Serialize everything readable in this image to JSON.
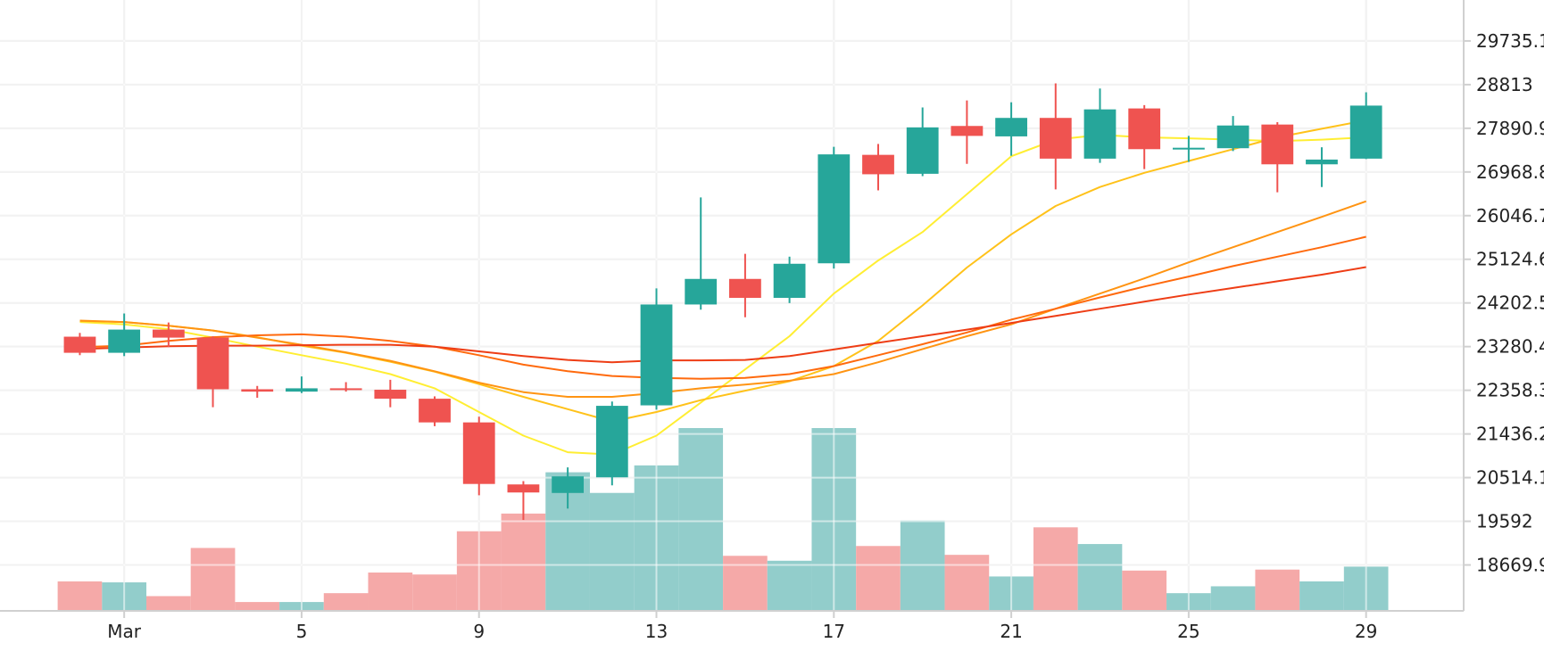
{
  "chart_data": {
    "type": "candlestick",
    "x_tick_labels": [
      "Mar",
      "5",
      "9",
      "13",
      "17",
      "21",
      "25",
      "29"
    ],
    "x_tick_days": [
      1,
      5,
      9,
      13,
      17,
      21,
      25,
      29
    ],
    "y_tick_labels": [
      "29735.1",
      "28813",
      "27890.9",
      "26968.8",
      "26046.7",
      "25124.6",
      "24202.5",
      "23280.4",
      "22358.3",
      "21436.2",
      "20514.1",
      "19592",
      "18669.9"
    ],
    "y_tick_values": [
      29735.1,
      28813,
      27890.9,
      26968.8,
      26046.7,
      25124.6,
      24202.5,
      23280.4,
      22358.3,
      21436.2,
      20514.1,
      19592,
      18669.9
    ],
    "ylim": [
      17700,
      30600
    ],
    "xlim": [
      -1.8,
      31.2
    ],
    "grid": true,
    "candles": [
      {
        "day": 0,
        "open": 23490,
        "high": 23570,
        "low": 23100,
        "close": 23150
      },
      {
        "day": 1,
        "open": 23150,
        "high": 23980,
        "low": 23080,
        "close": 23640
      },
      {
        "day": 2,
        "open": 23640,
        "high": 23790,
        "low": 23270,
        "close": 23470
      },
      {
        "day": 3,
        "open": 23470,
        "high": 23500,
        "low": 22000,
        "close": 22380
      },
      {
        "day": 4,
        "open": 22380,
        "high": 22450,
        "low": 22200,
        "close": 22330
      },
      {
        "day": 5,
        "open": 22330,
        "high": 22650,
        "low": 22300,
        "close": 22400
      },
      {
        "day": 6,
        "open": 22400,
        "high": 22530,
        "low": 22330,
        "close": 22370
      },
      {
        "day": 7,
        "open": 22370,
        "high": 22580,
        "low": 22000,
        "close": 22180
      },
      {
        "day": 8,
        "open": 22180,
        "high": 22230,
        "low": 21600,
        "close": 21680
      },
      {
        "day": 9,
        "open": 21680,
        "high": 21800,
        "low": 20140,
        "close": 20380
      },
      {
        "day": 10,
        "open": 20370,
        "high": 20440,
        "low": 19620,
        "close": 20200
      },
      {
        "day": 11,
        "open": 20190,
        "high": 20730,
        "low": 19860,
        "close": 20540
      },
      {
        "day": 12,
        "open": 20520,
        "high": 22120,
        "low": 20350,
        "close": 22030
      },
      {
        "day": 13,
        "open": 22040,
        "high": 24510,
        "low": 21950,
        "close": 24170
      },
      {
        "day": 14,
        "open": 24170,
        "high": 26430,
        "low": 24060,
        "close": 24710
      },
      {
        "day": 15,
        "open": 24710,
        "high": 25240,
        "low": 23900,
        "close": 24310
      },
      {
        "day": 16,
        "open": 24310,
        "high": 25180,
        "low": 24200,
        "close": 25030
      },
      {
        "day": 17,
        "open": 25040,
        "high": 27500,
        "low": 24930,
        "close": 27340
      },
      {
        "day": 18,
        "open": 27330,
        "high": 27560,
        "low": 26580,
        "close": 26920
      },
      {
        "day": 19,
        "open": 26930,
        "high": 28330,
        "low": 26880,
        "close": 27910
      },
      {
        "day": 20,
        "open": 27940,
        "high": 28480,
        "low": 27140,
        "close": 27730
      },
      {
        "day": 21,
        "open": 27720,
        "high": 28440,
        "low": 27310,
        "close": 28110
      },
      {
        "day": 22,
        "open": 28110,
        "high": 28840,
        "low": 26600,
        "close": 27250
      },
      {
        "day": 23,
        "open": 27250,
        "high": 28730,
        "low": 27160,
        "close": 28290
      },
      {
        "day": 24,
        "open": 28310,
        "high": 28380,
        "low": 27030,
        "close": 27450
      },
      {
        "day": 25,
        "open": 27450,
        "high": 27730,
        "low": 27180,
        "close": 27480
      },
      {
        "day": 26,
        "open": 27470,
        "high": 28150,
        "low": 27410,
        "close": 27950
      },
      {
        "day": 27,
        "open": 27970,
        "high": 28020,
        "low": 26540,
        "close": 27130
      },
      {
        "day": 28,
        "open": 27130,
        "high": 27490,
        "low": 26650,
        "close": 27230
      },
      {
        "day": 29,
        "open": 27250,
        "high": 28650,
        "low": 27240,
        "close": 28370
      }
    ],
    "volumes": [
      30,
      29,
      15,
      64,
      9,
      9,
      18,
      39,
      37,
      81,
      99,
      141,
      120,
      148,
      186,
      56,
      51,
      186,
      66,
      92,
      57,
      35,
      85,
      68,
      41,
      18,
      25,
      42,
      30,
      45
    ],
    "volume_max": 186,
    "moving_averages": [
      {
        "color": "#ffee33",
        "values": [
          23800,
          23750,
          23650,
          23470,
          23280,
          23100,
          22920,
          22700,
          22400,
          21900,
          21400,
          21050,
          21000,
          21400,
          22100,
          22800,
          23500,
          24400,
          25100,
          25700,
          26500,
          27300,
          27650,
          27750,
          27700,
          27680,
          27650,
          27620,
          27650,
          27700
        ]
      },
      {
        "color": "#ffc21a",
        "values": [
          23820,
          23800,
          23720,
          23620,
          23480,
          23300,
          23150,
          22960,
          22750,
          22490,
          22220,
          21960,
          21700,
          21900,
          22150,
          22350,
          22550,
          22870,
          23400,
          24150,
          24950,
          25650,
          26250,
          26650,
          26950,
          27200,
          27450,
          27700,
          27880,
          28060
        ]
      },
      {
        "color": "#ff9412",
        "values": [
          23830,
          23800,
          23720,
          23620,
          23470,
          23320,
          23160,
          22980,
          22760,
          22520,
          22320,
          22220,
          22220,
          22300,
          22400,
          22480,
          22560,
          22700,
          22950,
          23230,
          23500,
          23750,
          24080,
          24400,
          24720,
          25060,
          25380,
          25700,
          26020,
          26350
        ]
      },
      {
        "color": "#ff6a0d",
        "values": [
          23270,
          23300,
          23400,
          23480,
          23520,
          23540,
          23490,
          23400,
          23280,
          23100,
          22900,
          22760,
          22660,
          22620,
          22600,
          22620,
          22700,
          22870,
          23100,
          23330,
          23580,
          23850,
          24080,
          24320,
          24550,
          24760,
          24980,
          25180,
          25380,
          25600
        ]
      },
      {
        "color": "#ee3d15",
        "values": [
          23230,
          23260,
          23290,
          23300,
          23300,
          23310,
          23320,
          23320,
          23280,
          23180,
          23080,
          23000,
          22950,
          22990,
          22990,
          23000,
          23080,
          23220,
          23360,
          23500,
          23640,
          23780,
          23930,
          24080,
          24230,
          24380,
          24520,
          24660,
          24800,
          24960
        ]
      }
    ],
    "up_color": "#26a69a",
    "down_color": "#ef5350",
    "volume_up_color": "#92cdcb",
    "volume_down_color": "#f5a9a8"
  }
}
